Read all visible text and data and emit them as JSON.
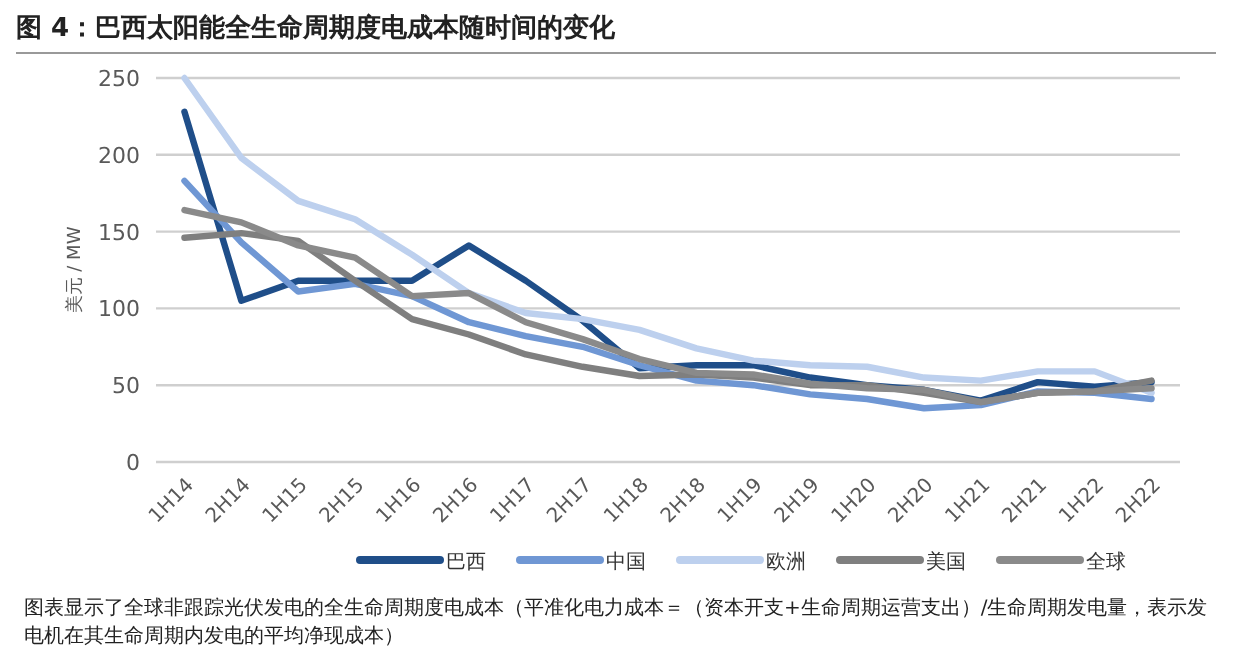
{
  "chart_data": {
    "type": "line",
    "title": "图 4：巴西太阳能全生命周期度电成本随时间的变化",
    "ylabel": "美元 / MW",
    "categories": [
      "1H14",
      "2H14",
      "1H15",
      "2H15",
      "1H16",
      "2H16",
      "1H17",
      "2H17",
      "1H18",
      "2H18",
      "1H19",
      "2H19",
      "1H20",
      "2H20",
      "1H21",
      "2H21",
      "1H22",
      "2H22"
    ],
    "series": [
      {
        "name": "巴西",
        "color": "#1f4e89",
        "values": [
          228,
          105,
          118,
          118,
          118,
          141,
          118,
          92,
          61,
          63,
          63,
          55,
          50,
          47,
          40,
          52,
          49,
          52
        ]
      },
      {
        "name": "中国",
        "color": "#6f97d4",
        "values": [
          183,
          143,
          111,
          116,
          108,
          91,
          82,
          75,
          63,
          53,
          50,
          44,
          41,
          35,
          37,
          46,
          45,
          41
        ]
      },
      {
        "name": "欧洲",
        "color": "#bdd0ee",
        "values": [
          250,
          198,
          170,
          158,
          135,
          110,
          97,
          93,
          86,
          74,
          66,
          63,
          62,
          55,
          53,
          59,
          59,
          45
        ]
      },
      {
        "name": "美国",
        "color": "#7f7f7f",
        "values": [
          146,
          149,
          144,
          118,
          93,
          83,
          70,
          62,
          56,
          57,
          55,
          50,
          50,
          45,
          39,
          45,
          46,
          53
        ]
      },
      {
        "name": "全球",
        "color": "#8a8a8a",
        "values": [
          164,
          156,
          141,
          133,
          108,
          110,
          91,
          80,
          67,
          58,
          57,
          51,
          48,
          47,
          39,
          45,
          46,
          48
        ]
      }
    ],
    "ylim": [
      0,
      250
    ],
    "yticks": [
      0,
      50,
      100,
      150,
      200,
      250
    ],
    "grid": "y",
    "legend": "bottom",
    "marker": "none",
    "line_style": "solid",
    "annotations": [
      "图表显示了全球非跟踪光伏发电的全生命周期度电成本（平准化电力成本＝（资本开支+生命周期运营支出）/生命周期发电量，表示发电机在其生命周期内发电的平均净现成本）"
    ]
  }
}
